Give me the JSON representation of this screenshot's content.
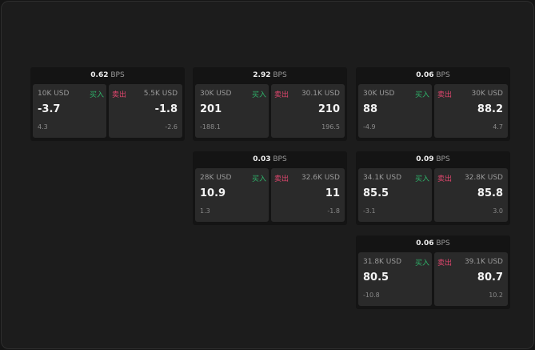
{
  "unit": "BPS",
  "buy_label": "买入",
  "sell_label": "卖出",
  "colors": {
    "buy": "#2fb36a",
    "sell": "#e0466e"
  },
  "cards": [
    {
      "spread": "0.62",
      "bid": {
        "size": "10K USD",
        "price": "-3.7",
        "change": "4.3"
      },
      "ask": {
        "size": "5.5K USD",
        "price": "-1.8",
        "change": "-2.6"
      }
    },
    {
      "spread": "2.92",
      "bid": {
        "size": "30K USD",
        "price": "201",
        "change": "-188.1"
      },
      "ask": {
        "size": "30.1K USD",
        "price": "210",
        "change": "196.5"
      }
    },
    {
      "spread": "0.06",
      "bid": {
        "size": "30K USD",
        "price": "88",
        "change": "-4.9"
      },
      "ask": {
        "size": "30K USD",
        "price": "88.2",
        "change": "4.7"
      }
    },
    {
      "spread": "0.03",
      "bid": {
        "size": "28K USD",
        "price": "10.9",
        "change": "1.3"
      },
      "ask": {
        "size": "32.6K USD",
        "price": "11",
        "change": "-1.8"
      }
    },
    {
      "spread": "0.09",
      "bid": {
        "size": "34.1K USD",
        "price": "85.5",
        "change": "-3.1"
      },
      "ask": {
        "size": "32.8K USD",
        "price": "85.8",
        "change": "3.0"
      }
    },
    {
      "spread": "0.06",
      "bid": {
        "size": "31.8K USD",
        "price": "80.5",
        "change": "-10.8"
      },
      "ask": {
        "size": "39.1K USD",
        "price": "80.7",
        "change": "10.2"
      }
    }
  ]
}
